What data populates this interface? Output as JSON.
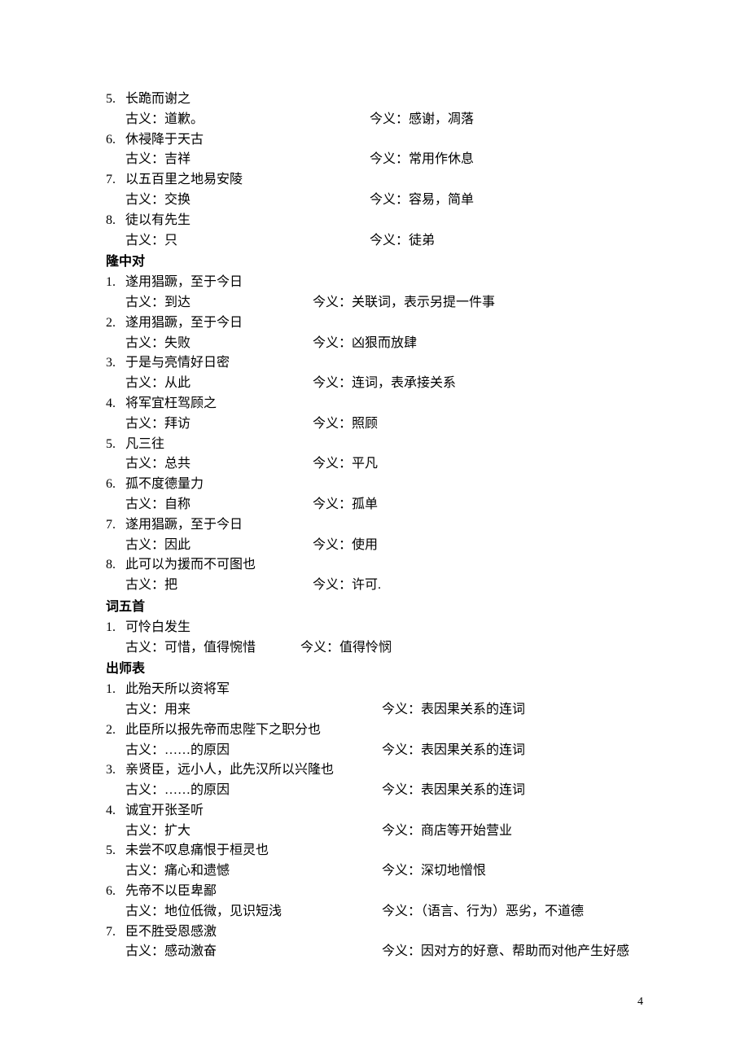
{
  "page_number": "4",
  "colors": {
    "text": "#000000",
    "background": "#ffffff"
  },
  "typography": {
    "body_font": "SimSun",
    "title_font": "SimHei",
    "body_size_pt": 12,
    "line_height": 1.55
  },
  "sections": [
    {
      "title": null,
      "def_gu_width": 300,
      "entries": [
        {
          "num": "5.",
          "phrase": "长跪而谢之",
          "gu": "古义：道歉。",
          "jin": "今义：感谢，凋落"
        },
        {
          "num": "6.",
          "phrase": "休祲降于天古",
          "gu": "古义：吉祥",
          "jin": "今义：常用作休息"
        },
        {
          "num": "7.",
          "phrase": "以五百里之地易安陵",
          "gu": "古义：交换",
          "jin": "今义：容易，简单"
        },
        {
          "num": "8.",
          "phrase": "徒以有先生",
          "gu": "古义：只",
          "jin": "今义：徒弟"
        }
      ]
    },
    {
      "title": "隆中对",
      "def_gu_width": 230,
      "entries": [
        {
          "num": "1.",
          "phrase": "遂用猖蹶，至于今日",
          "gu": "古义：到达",
          "jin": "今义：关联词，表示另提一件事"
        },
        {
          "num": "2.",
          "phrase": "遂用猖蹶，至于今日",
          "gu": "古义：失败",
          "jin": "今义：凶狠而放肆"
        },
        {
          "num": "3.",
          "phrase": "于是与亮情好日密",
          "gu": "古义：从此",
          "jin": "今义：连词，表承接关系"
        },
        {
          "num": "4.",
          "phrase": "将军宜枉驾顾之",
          "gu": "古义：拜访",
          "jin": "今义：照顾"
        },
        {
          "num": "5.",
          "phrase": "凡三往",
          "gu": "古义：总共",
          "jin": "今义：平凡"
        },
        {
          "num": "6.",
          "phrase": "孤不度德量力",
          "gu": "古义：自称",
          "jin": "今义：孤单"
        },
        {
          "num": "7.",
          "phrase": "遂用猖蹶，至于今日",
          "gu": "古义：因此",
          "jin": "今义：使用"
        },
        {
          "num": "8.",
          "phrase": "此可以为援而不可图也",
          "gu": "古义：把",
          "jin": "今义：许可."
        }
      ]
    },
    {
      "title": "词五首",
      "def_gu_width": 215,
      "entries": [
        {
          "num": "1.",
          "phrase": "可怜白发生",
          "gu": "古义：可惜，值得惋惜",
          "jin": "今义：值得怜悯"
        }
      ]
    },
    {
      "title": "出师表",
      "def_gu_width": 315,
      "entries": [
        {
          "num": "1.",
          "phrase": "此殆天所以资将军",
          "gu": "古义：用来",
          "jin": "今义：表因果关系的连词"
        },
        {
          "num": "2.",
          "phrase": "此臣所以报先帝而忠陛下之职分也",
          "gu": "古义：……的原因",
          "jin": "今义：表因果关系的连词"
        },
        {
          "num": "3.",
          "phrase": "亲贤臣，远小人，此先汉所以兴隆也",
          "gu": "古义：……的原因",
          "jin": "今义：表因果关系的连词"
        },
        {
          "num": "4.",
          "phrase": "诚宜开张圣听",
          "gu": "古义：扩大",
          "jin": "今义：商店等开始营业"
        },
        {
          "num": "5.",
          "phrase": "未尝不叹息痛恨于桓灵也",
          "gu": "古义：痛心和遗憾",
          "jin": "今义：深切地憎恨"
        },
        {
          "num": "6.",
          "phrase": "先帝不以臣卑鄙",
          "gu": "古义：地位低微，见识短浅",
          "jin": "今义：（语言、行为）恶劣，不道德"
        },
        {
          "num": "7.",
          "phrase": "臣不胜受恩感激",
          "gu": "古义：感动激奋",
          "jin": "今义：因对方的好意、帮助而对他产生好感"
        }
      ]
    }
  ]
}
